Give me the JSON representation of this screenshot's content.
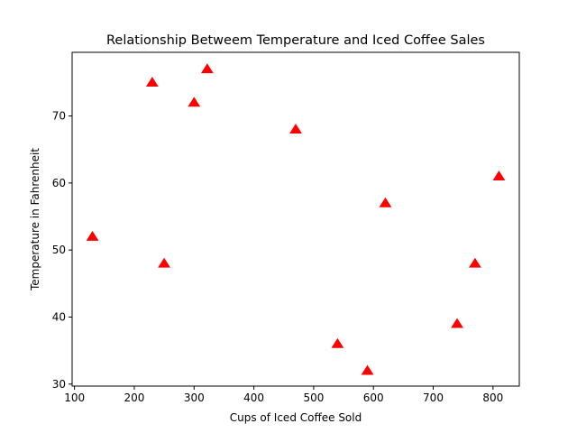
{
  "chart_data": {
    "type": "scatter",
    "title": "Relationship Betweem Temperature and Iced Coffee Sales",
    "xlabel": "Cups of Iced Coffee Sold",
    "ylabel": "Temperature in Fahrenheit",
    "xlim": [
      96,
      844
    ],
    "ylim": [
      29.7,
      79.5
    ],
    "xticks": [
      100,
      200,
      300,
      400,
      500,
      600,
      700,
      800
    ],
    "yticks": [
      30,
      40,
      50,
      60,
      70
    ],
    "grid": false,
    "marker": "triangle",
    "marker_color": "#ff0000",
    "series": [
      {
        "x": [
          130,
          230,
          250,
          300,
          322,
          470,
          540,
          590,
          620,
          740,
          770,
          810
        ],
        "y": [
          52,
          75,
          48,
          72,
          77,
          68,
          36,
          32,
          57,
          39,
          48,
          61
        ]
      }
    ]
  }
}
